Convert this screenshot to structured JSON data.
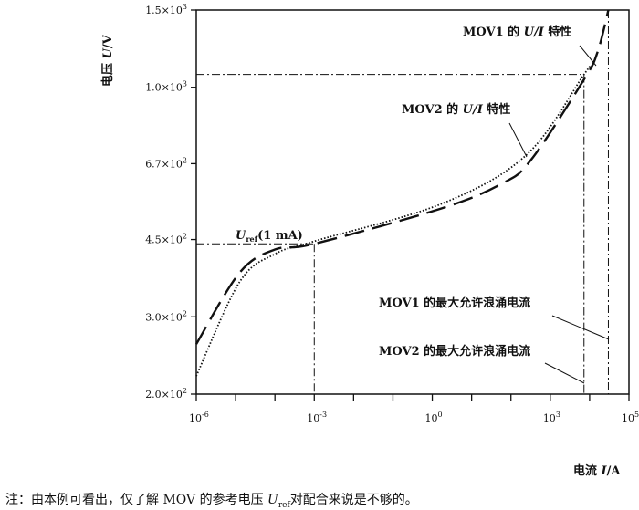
{
  "chart_data": {
    "type": "line",
    "xlabel_prefix": "电流 ",
    "xlabel_var": "I",
    "xlabel_unit": "/A",
    "ylabel_prefix": "电压 ",
    "ylabel_var": "U",
    "ylabel_unit": "/V",
    "x_scale": "log",
    "y_scale": "log",
    "xlim": [
      1e-06,
      100000.0
    ],
    "ylim": [
      200,
      1500
    ],
    "x_ticks": [
      {
        "value": 1e-06,
        "base": "10",
        "exp": "-6"
      },
      {
        "value": 0.001,
        "base": "10",
        "exp": "-3"
      },
      {
        "value": 1,
        "base": "10",
        "exp": "0"
      },
      {
        "value": 1000.0,
        "base": "10",
        "exp": "3"
      },
      {
        "value": 100000.0,
        "base": "10",
        "exp": "5"
      }
    ],
    "x_minor_ticks": [
      1e-05,
      0.0001,
      0.01,
      0.1,
      10.0,
      100.0,
      10000.0
    ],
    "y_ticks": [
      {
        "value": 200,
        "mant": "2.0×10",
        "exp": "2"
      },
      {
        "value": 300,
        "mant": "3.0×10",
        "exp": "2"
      },
      {
        "value": 450,
        "mant": "4.5×10",
        "exp": "2"
      },
      {
        "value": 670,
        "mant": "6.7×10",
        "exp": "2"
      },
      {
        "value": 1000,
        "mant": "1.0×10",
        "exp": "3"
      },
      {
        "value": 1500,
        "mant": "1.5×10",
        "exp": "3"
      }
    ],
    "grid": false,
    "series": [
      {
        "name": "MOV1",
        "style": "dashed",
        "x": [
          1e-06,
          1.26e-05,
          0.0001,
          0.001,
          1.74,
          60,
          330,
          7200,
          16000,
          30000
        ],
        "y": [
          260,
          378,
          427,
          440,
          530,
          604,
          685,
          1042,
          1205,
          1500
        ]
      },
      {
        "name": "MOV2",
        "style": "dotted",
        "x": [
          1e-06,
          1.26e-05,
          0.0001,
          0.001,
          1.74,
          250,
          7200,
          9000
        ],
        "y": [
          220,
          360,
          417,
          446,
          543,
          702,
          1070,
          1100
        ]
      }
    ],
    "reference_lines": [
      {
        "type": "U_ref",
        "x": 0.001,
        "y": 440
      },
      {
        "type": "MOV2_max",
        "x": 7200,
        "y": 1070
      },
      {
        "type": "MOV1_max",
        "x": 30000
      }
    ],
    "annotations": {
      "mov1_ui": {
        "pre": "MOV1 的 ",
        "var": "U/I",
        "post": " 特性"
      },
      "mov2_ui": {
        "pre": "MOV2 的 ",
        "var": "U/I",
        "post": " 特性"
      },
      "uref": {
        "var": "U",
        "sub": "ref",
        "post": "(1 mA)"
      },
      "mov1_max": "MOV1 的最大允许浪涌电流",
      "mov2_max": "MOV2 的最大允许浪涌电流"
    }
  },
  "caption": {
    "pre": "注：由本例可看出，仅了解 MOV 的参考电压 ",
    "var": "U",
    "sub": "ref",
    "post": "对配合来说是不够的。"
  }
}
